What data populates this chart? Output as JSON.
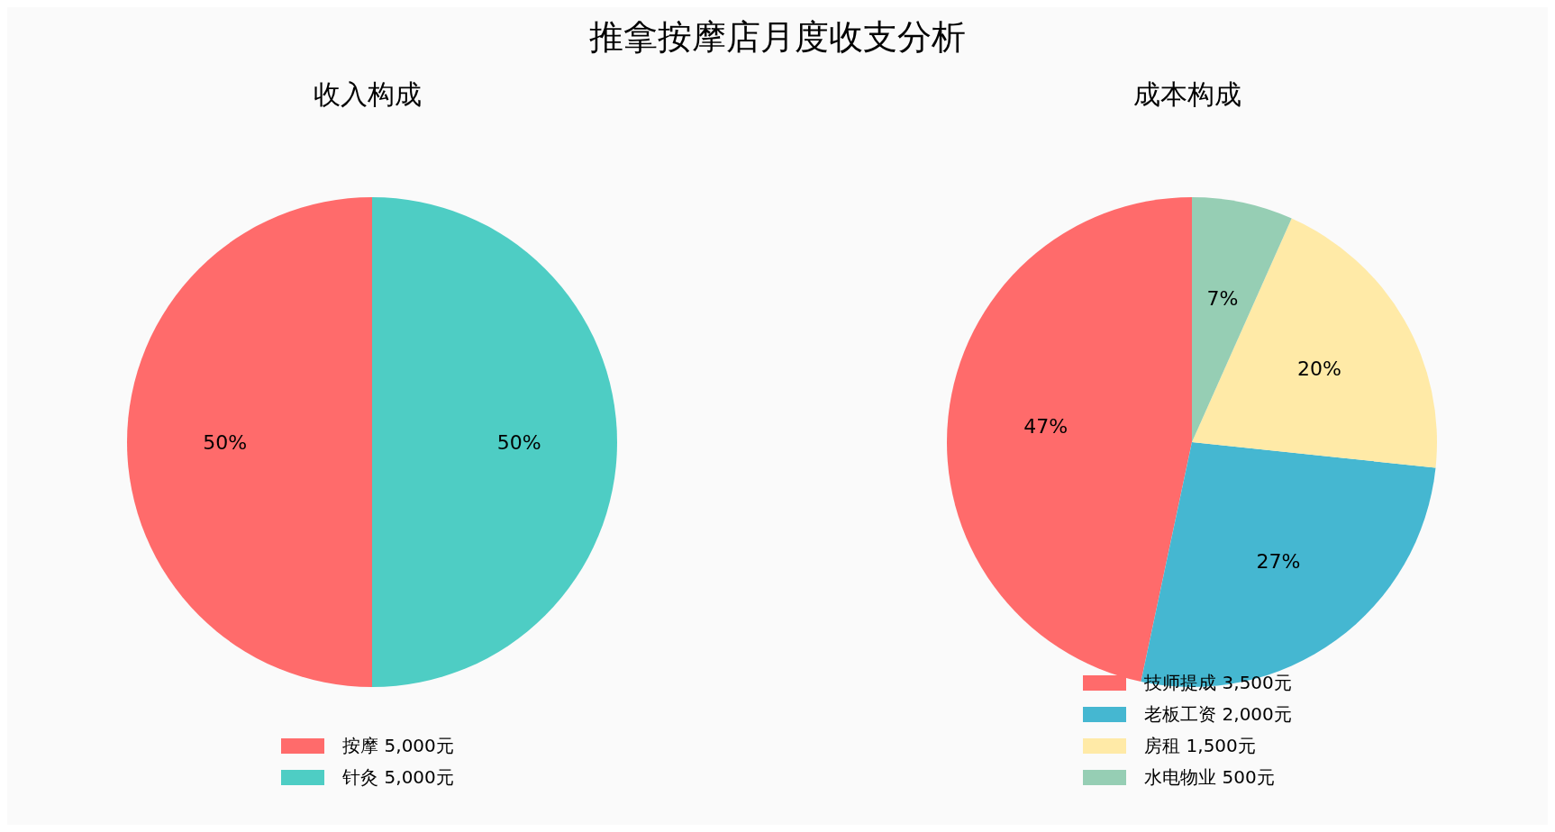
{
  "chart_data": [
    {
      "type": "pie",
      "title": "收入构成",
      "annotations": [
        "推拿按摩店月度收支分析"
      ],
      "categories": [
        "按摩 5,000元",
        "针灸 5,000元"
      ],
      "values": [
        50,
        50
      ],
      "colors": [
        "#ff6b6b",
        "#4ecdc4"
      ],
      "value_labels": [
        "50%",
        "50%"
      ],
      "legend": "bottom"
    },
    {
      "type": "pie",
      "title": "成本构成",
      "categories": [
        "技师提成 3,500元",
        "老板工资 2,000元",
        "房租 1,500元",
        "水电物业 500元"
      ],
      "values": [
        46.67,
        26.67,
        20,
        6.67
      ],
      "colors": [
        "#ff6b6b",
        "#45b7d1",
        "#ffeaa7",
        "#96ceb4"
      ],
      "value_labels": [
        "47%",
        "27%",
        "20%",
        "7%"
      ],
      "legend": "bottom"
    }
  ]
}
